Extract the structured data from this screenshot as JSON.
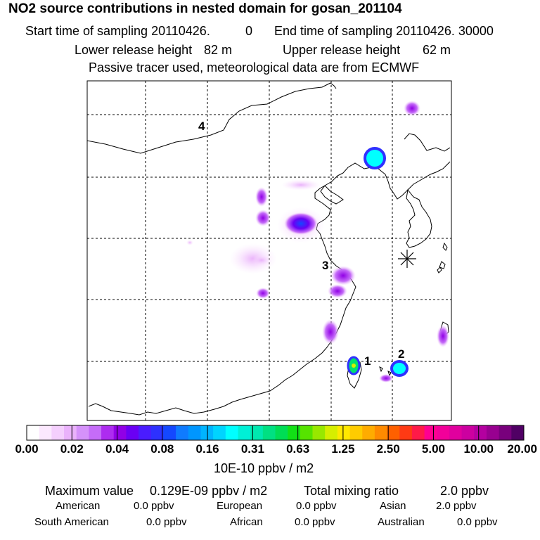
{
  "header": {
    "title": "NO2 source contributions in nested domain for gosan_201104",
    "start_label": "Start time of sampling 20110426.",
    "start_hour": "0",
    "end_label": "End time of sampling 20110426. 30000",
    "lower_label": "Lower release height",
    "lower_value": "82 m",
    "upper_label": "Upper release height",
    "upper_value": "62 m",
    "note": "Passive tracer used, meteorological data are from ECMWF"
  },
  "map": {
    "region_labels": [
      "1",
      "2",
      "3",
      "4"
    ],
    "receptor_marker": "star-icon",
    "plume_colors": {
      "light": "#f0c8f8",
      "violet": "#a000f0",
      "blue": "#3030ff",
      "cyan": "#00ffff",
      "green": "#00e070"
    }
  },
  "colorbar": {
    "ticks": [
      "0.00",
      "0.02",
      "0.04",
      "0.08",
      "0.16",
      "0.31",
      "0.63",
      "1.25",
      "2.50",
      "5.00",
      "10.00",
      "20.00"
    ],
    "colors": [
      "#ffffff",
      "#fbe8fe",
      "#f4cffd",
      "#eab2fb",
      "#d592fa",
      "#c56cf8",
      "#ad2cf0",
      "#9100e6",
      "#6a00f4",
      "#4a1cff",
      "#2d31ff",
      "#1448ff",
      "#0f7bff",
      "#0096ff",
      "#00b4ff",
      "#00d4ff",
      "#00ffff",
      "#00f0d6",
      "#00e8b0",
      "#00e082",
      "#00dd55",
      "#12e016",
      "#56e300",
      "#98e800",
      "#d6ee00",
      "#ffe800",
      "#ffcc00",
      "#ffac00",
      "#ff8a00",
      "#ff6000",
      "#ff3a14",
      "#ff1a48",
      "#ff0090",
      "#f2009a",
      "#e0009e",
      "#cc00a0",
      "#b400a0",
      "#980090",
      "#78007c",
      "#500064"
    ],
    "unit": "10E-10 ppbv / m2"
  },
  "stats": {
    "max_label": "Maximum value",
    "max_value": "0.129E-09 ppbv / m2",
    "total_label": "Total mixing ratio",
    "total_value": "2.0 ppbv",
    "regions": [
      {
        "name": "American",
        "value": "0.0 ppbv"
      },
      {
        "name": "European",
        "value": "0.0 ppbv"
      },
      {
        "name": "Asian",
        "value": "2.0 ppbv"
      },
      {
        "name": "South American",
        "value": "0.0 ppbv"
      },
      {
        "name": "African",
        "value": "0.0 ppbv"
      },
      {
        "name": "Australian",
        "value": "0.0 ppbv"
      }
    ]
  }
}
